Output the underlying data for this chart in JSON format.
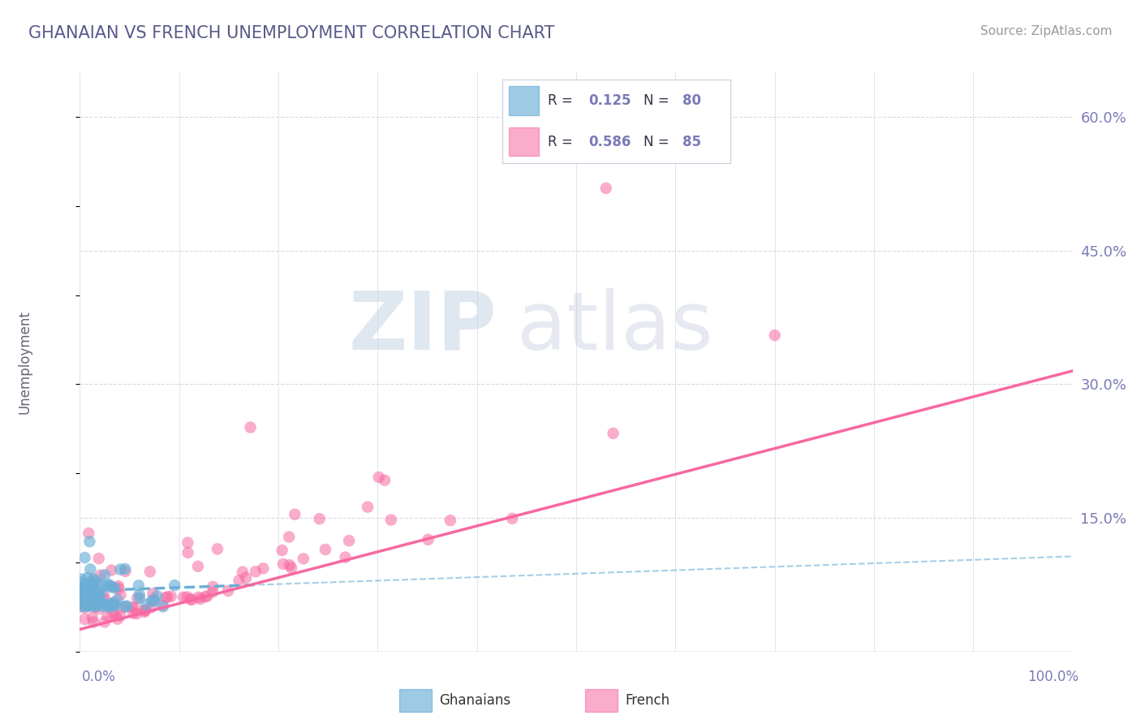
{
  "title": "GHANAIAN VS FRENCH UNEMPLOYMENT CORRELATION CHART",
  "source": "Source: ZipAtlas.com",
  "ylabel": "Unemployment",
  "yticks": [
    0.0,
    0.15,
    0.3,
    0.45,
    0.6
  ],
  "ytick_labels": [
    "",
    "15.0%",
    "30.0%",
    "45.0%",
    "60.0%"
  ],
  "xlim": [
    0.0,
    1.0
  ],
  "ylim": [
    0.0,
    0.65
  ],
  "ghanaian_color": "#6baed6",
  "french_color": "#f768a1",
  "axis_color": "#7a7ab8",
  "grid_color": "#d8d8e8",
  "background_color": "#ffffff",
  "title_color": "#5a5a8a",
  "watermark_zip_color": "#c8d8e8",
  "watermark_atlas_color": "#c8d0e0",
  "ghanaian_R": 0.125,
  "ghanaian_N": 80,
  "french_R": 0.586,
  "french_N": 85,
  "gh_trend_x0": 0.0,
  "gh_trend_x1": 0.18,
  "gh_trend_y0": 0.068,
  "gh_trend_y1": 0.075,
  "fr_trend_x0": 0.0,
  "fr_trend_x1": 1.0,
  "fr_trend_y0": 0.025,
  "fr_trend_y1": 0.315
}
